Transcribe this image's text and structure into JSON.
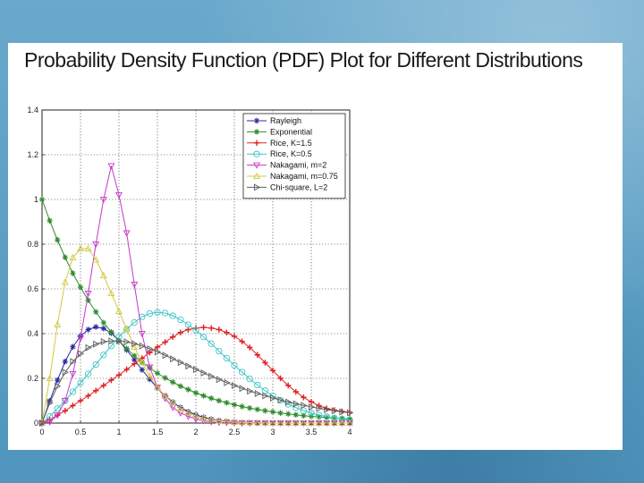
{
  "slide": {
    "title": "Probability Density Function (PDF) Plot for Different Distributions"
  },
  "chart_data": {
    "type": "line",
    "title": "",
    "xlabel": "",
    "ylabel": "",
    "xlim": [
      0,
      4
    ],
    "ylim": [
      0,
      1.4
    ],
    "grid": true,
    "legend_position": "top-right",
    "x_ticks": [
      0,
      0.5,
      1,
      1.5,
      2,
      2.5,
      3,
      3.5,
      4
    ],
    "x_tick_labels": [
      "0",
      "0.5",
      "1",
      "1.5",
      "2",
      "2.5",
      "3",
      "3.5",
      "4"
    ],
    "y_ticks": [
      0,
      0.2,
      0.4,
      0.6,
      0.8,
      1,
      1.2,
      1.4
    ],
    "y_tick_labels": [
      "0",
      "0.2",
      "0.4",
      "0.6",
      "0.8",
      "1",
      "1.2",
      "1.4"
    ],
    "x": [
      0,
      0.1,
      0.2,
      0.3,
      0.4,
      0.5,
      0.6,
      0.7,
      0.8,
      0.9,
      1.0,
      1.1,
      1.2,
      1.3,
      1.4,
      1.5,
      1.6,
      1.7,
      1.8,
      1.9,
      2.0,
      2.1,
      2.2,
      2.3,
      2.4,
      2.5,
      2.6,
      2.7,
      2.8,
      2.9,
      3.0,
      3.1,
      3.2,
      3.3,
      3.4,
      3.5,
      3.6,
      3.7,
      3.8,
      3.9,
      4.0
    ],
    "series": [
      {
        "name": "Rayleigh",
        "color": "#2a2aa0",
        "marker": "star",
        "values": [
          0,
          0.099,
          0.192,
          0.275,
          0.341,
          0.388,
          0.418,
          0.43,
          0.423,
          0.402,
          0.368,
          0.327,
          0.283,
          0.238,
          0.196,
          0.156,
          0.123,
          0.094,
          0.07,
          0.051,
          0.037,
          0.026,
          0.018,
          0.012,
          0.008,
          0.005,
          0.003,
          0.002,
          0.001,
          0.001,
          0,
          0,
          0,
          0,
          0,
          0,
          0,
          0,
          0,
          0,
          0
        ]
      },
      {
        "name": "Exponential",
        "color": "#2e8b2e",
        "marker": "asterisk",
        "values": [
          1.0,
          0.905,
          0.819,
          0.741,
          0.67,
          0.607,
          0.549,
          0.497,
          0.449,
          0.407,
          0.368,
          0.333,
          0.301,
          0.273,
          0.247,
          0.223,
          0.202,
          0.183,
          0.165,
          0.15,
          0.135,
          0.122,
          0.111,
          0.1,
          0.091,
          0.082,
          0.074,
          0.067,
          0.061,
          0.055,
          0.05,
          0.045,
          0.041,
          0.037,
          0.033,
          0.03,
          0.027,
          0.025,
          0.022,
          0.02,
          0.018
        ]
      },
      {
        "name": "Rice, K=1.5",
        "color": "#e02020",
        "marker": "plus",
        "values": [
          0,
          0.015,
          0.035,
          0.055,
          0.078,
          0.1,
          0.122,
          0.145,
          0.168,
          0.192,
          0.215,
          0.24,
          0.265,
          0.29,
          0.315,
          0.34,
          0.362,
          0.385,
          0.405,
          0.418,
          0.425,
          0.428,
          0.425,
          0.418,
          0.405,
          0.388,
          0.365,
          0.338,
          0.305,
          0.27,
          0.235,
          0.2,
          0.168,
          0.14,
          0.115,
          0.095,
          0.078,
          0.065,
          0.058,
          0.052,
          0.048
        ]
      },
      {
        "name": "Rice, K=0.5",
        "color": "#3cc6c6",
        "marker": "circle",
        "values": [
          0,
          0.03,
          0.065,
          0.1,
          0.14,
          0.18,
          0.22,
          0.262,
          0.305,
          0.345,
          0.385,
          0.42,
          0.45,
          0.475,
          0.49,
          0.495,
          0.492,
          0.48,
          0.462,
          0.44,
          0.415,
          0.385,
          0.355,
          0.322,
          0.29,
          0.258,
          0.228,
          0.198,
          0.17,
          0.145,
          0.122,
          0.102,
          0.084,
          0.069,
          0.056,
          0.045,
          0.036,
          0.029,
          0.023,
          0.018,
          0.014
        ]
      },
      {
        "name": "Nakagami, m=2",
        "color": "#c838c8",
        "marker": "triangle-down",
        "values": [
          0,
          0.005,
          0.035,
          0.1,
          0.22,
          0.38,
          0.58,
          0.8,
          1.0,
          1.15,
          1.02,
          0.85,
          0.62,
          0.4,
          0.25,
          0.16,
          0.11,
          0.07,
          0.045,
          0.03,
          0.018,
          0.01,
          0.006,
          0.003,
          0.002,
          0.001,
          0,
          0,
          0,
          0,
          0,
          0,
          0,
          0,
          0,
          0,
          0,
          0,
          0,
          0,
          0
        ]
      },
      {
        "name": "Nakagami, m=0.75",
        "color": "#d4c840",
        "marker": "triangle-up",
        "values": [
          0,
          0.2,
          0.44,
          0.63,
          0.74,
          0.78,
          0.78,
          0.73,
          0.66,
          0.58,
          0.5,
          0.42,
          0.34,
          0.27,
          0.21,
          0.16,
          0.12,
          0.09,
          0.065,
          0.046,
          0.032,
          0.022,
          0.015,
          0.01,
          0.007,
          0.004,
          0.003,
          0.002,
          0.001,
          0.001,
          0,
          0,
          0,
          0,
          0,
          0,
          0,
          0,
          0,
          0,
          0
        ]
      },
      {
        "name": "Chi-square, L=2",
        "color": "#606060",
        "marker": "triangle-right",
        "values": [
          0,
          0.09,
          0.165,
          0.227,
          0.275,
          0.31,
          0.337,
          0.353,
          0.364,
          0.367,
          0.367,
          0.363,
          0.355,
          0.345,
          0.332,
          0.318,
          0.303,
          0.287,
          0.271,
          0.255,
          0.24,
          0.224,
          0.209,
          0.195,
          0.181,
          0.168,
          0.155,
          0.143,
          0.132,
          0.122,
          0.112,
          0.103,
          0.094,
          0.086,
          0.079,
          0.072,
          0.066,
          0.06,
          0.055,
          0.05,
          0.046
        ]
      }
    ]
  }
}
